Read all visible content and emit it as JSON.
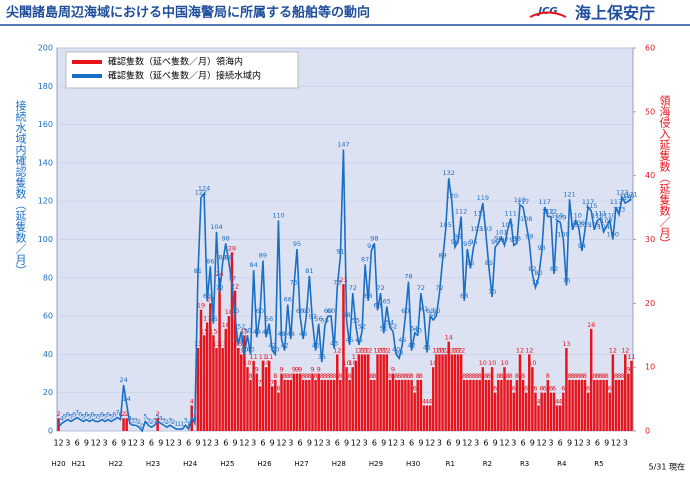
{
  "header": {
    "title": "尖閣諸島周辺海域における中国海警局に所属する船舶等の動向",
    "logo_mark": "JCG",
    "logo_text": "海上保安庁"
  },
  "chart_data": {
    "type": "bar_line",
    "y_label": "接続水域内確認隻数（延隻数／月）",
    "y2_label": "領海侵入延隻数（延隻数／月）",
    "note": "5/31 現在",
    "years": [
      "H20",
      "H21",
      "H22",
      "H23",
      "H24",
      "H25",
      "H26",
      "H27",
      "H28",
      "H29",
      "H30",
      "R1",
      "R2",
      "R3",
      "R4",
      "R5"
    ],
    "categories": [
      "12",
      null,
      null,
      "3",
      null,
      null,
      "6",
      null,
      null,
      "9",
      null,
      null,
      "12",
      null,
      null,
      "3",
      null,
      null,
      "6",
      null,
      null,
      "9",
      null,
      null,
      "12",
      null,
      null,
      "3",
      null,
      null,
      "6",
      null,
      null,
      "9",
      null,
      null,
      "12",
      null,
      null,
      "3",
      null,
      null,
      "6",
      null,
      null,
      "9",
      null,
      null,
      "12",
      null,
      null,
      "3",
      null,
      null,
      "6",
      null,
      null,
      "9",
      null,
      null,
      "12",
      null,
      null,
      "3",
      null,
      null,
      "6",
      null,
      null,
      "9",
      null,
      null,
      "12",
      null,
      null,
      "3",
      null,
      null,
      "6",
      null,
      null,
      "9",
      null,
      null,
      "12",
      null,
      null,
      "3",
      null,
      null,
      "6",
      null,
      null,
      "9",
      null,
      null,
      "12",
      null,
      null,
      "3",
      null,
      null,
      "6",
      null,
      null,
      "9",
      null,
      null,
      "12",
      null,
      null,
      "3",
      null,
      null,
      "6",
      null,
      null,
      "9",
      null,
      null,
      "12",
      null,
      null,
      "3",
      null,
      null,
      "6",
      null,
      null,
      "9",
      null,
      null,
      "12",
      null,
      null,
      "3",
      null,
      null,
      "6",
      null,
      null,
      "9",
      null,
      null,
      "12",
      null,
      null,
      "3",
      null,
      null,
      "6",
      null,
      null,
      "9",
      null,
      null,
      "12",
      null,
      null,
      "3",
      null,
      null,
      "6",
      null,
      null,
      "9",
      null,
      null,
      "12",
      null,
      null,
      "3",
      null,
      null,
      "6",
      null,
      null,
      "9",
      null,
      null,
      "12",
      null,
      null,
      "3",
      null,
      null
    ],
    "series": [
      {
        "name": "確認隻数（延べ隻数／月）領海内",
        "color": "#e8141c",
        "axis": "y2",
        "kind": "bar",
        "values": [
          2,
          0,
          0,
          0,
          0,
          0,
          0,
          0,
          0,
          0,
          0,
          0,
          0,
          0,
          0,
          0,
          0,
          0,
          0,
          0,
          0,
          2,
          2,
          0,
          0,
          0,
          0,
          0,
          0,
          0,
          0,
          0,
          2,
          0,
          0,
          0,
          0,
          0,
          0,
          0,
          0,
          0,
          0,
          4,
          0,
          13,
          19,
          15,
          17,
          20,
          15,
          13,
          24,
          13,
          16,
          18,
          28,
          22,
          13,
          12,
          15,
          10,
          8,
          11,
          9,
          7,
          11,
          10,
          11,
          7,
          8,
          6,
          9,
          8,
          8,
          8,
          9,
          9,
          9,
          8,
          8,
          8,
          9,
          8,
          9,
          8,
          8,
          8,
          8,
          8,
          12,
          8,
          23,
          10,
          8,
          10,
          11,
          12,
          12,
          12,
          12,
          8,
          8,
          12,
          12,
          12,
          12,
          8,
          9,
          8,
          8,
          8,
          8,
          8,
          8,
          6,
          8,
          8,
          4,
          4,
          4,
          10,
          12,
          12,
          12,
          12,
          14,
          12,
          12,
          12,
          12,
          8,
          8,
          8,
          8,
          8,
          8,
          10,
          8,
          8,
          10,
          6,
          8,
          8,
          10,
          8,
          8,
          6,
          8,
          12,
          8,
          6,
          12,
          10,
          6,
          4,
          6,
          6,
          8,
          6,
          6,
          4,
          4,
          6,
          13,
          8,
          8,
          8,
          8,
          8,
          8,
          6,
          16,
          8,
          8,
          8,
          8,
          8,
          6,
          12,
          8,
          8,
          8,
          12,
          9,
          11
        ]
      },
      {
        "name": "確認隻数（延べ隻数／月）接続水域内",
        "color": "#1a6fc4",
        "axis": "y",
        "kind": "line",
        "values": [
          2,
          4,
          5,
          6,
          5,
          6,
          7,
          6,
          5,
          6,
          5,
          6,
          5,
          5,
          6,
          5,
          6,
          5,
          6,
          7,
          6,
          24,
          14,
          4,
          3,
          3,
          2,
          0,
          5,
          3,
          2,
          3,
          5,
          4,
          3,
          2,
          3,
          2,
          1,
          1,
          1,
          3,
          1,
          7,
          4,
          81,
          122,
          124,
          68,
          86,
          56,
          104,
          72,
          88,
          98,
          88,
          77,
          60,
          45,
          52,
          40,
          50,
          40,
          84,
          49,
          60,
          89,
          49,
          56,
          42,
          40,
          110,
          48,
          42,
          66,
          48,
          75,
          95,
          60,
          48,
          60,
          81,
          57,
          42,
          56,
          36,
          55,
          60,
          60,
          43,
          75,
          91,
          147,
          58,
          45,
          72,
          55,
          45,
          52,
          87,
          68,
          94,
          98,
          63,
          72,
          51,
          65,
          54,
          52,
          40,
          38,
          45,
          60,
          78,
          42,
          51,
          50,
          72,
          61,
          41,
          60,
          58,
          60,
          72,
          89,
          105,
          132,
          120,
          96,
          99,
          112,
          68,
          95,
          85,
          96,
          103,
          111,
          119,
          103,
          85,
          70,
          96,
          98,
          101,
          97,
          105,
          111,
          97,
          98,
          118,
          117,
          108,
          99,
          82,
          75,
          80,
          93,
          117,
          112,
          112,
          82,
          110,
          109,
          100,
          76,
          121,
          105,
          110,
          106,
          94,
          105,
          117,
          115,
          105,
          110,
          111,
          104,
          107,
          110,
          100,
          117,
          113,
          122,
          119,
          120,
          121
        ]
      }
    ],
    "ylim": [
      0,
      200
    ],
    "yticks": [
      0,
      20,
      40,
      60,
      80,
      100,
      120,
      140,
      160,
      180,
      200
    ],
    "y2lim": [
      0,
      60
    ],
    "y2ticks": [
      0,
      10,
      20,
      30,
      40,
      50,
      60
    ],
    "grid": true,
    "legend": "upper left"
  }
}
